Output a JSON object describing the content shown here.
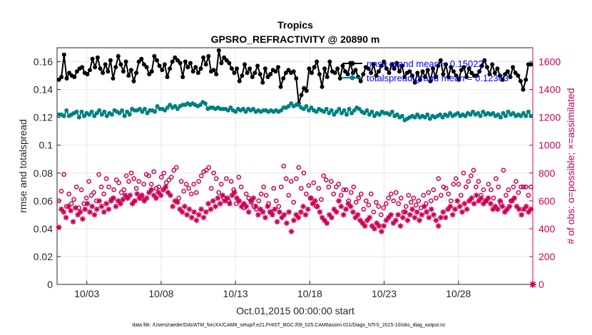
{
  "chart_data": {
    "type": "line",
    "title": "Tropics",
    "subtitle": "GPSRO_REFRACTIVITY @ 20890 m",
    "xlabel": "Oct.01,2015 00:00:00 start",
    "ylabel_left": "rmse and totalspread",
    "ylabel_right": "# of obs: o=possible; ×=assimilated",
    "footer": "data file: /Users/raeder/DAI/ATM_forcXX/CAM6_setup/f.e21.FHIST_BGC.f09_025.CAM6assim.011/Diags_NTrS_2015-10/obs_diag_output.nc",
    "x_ticks": [
      "10/03",
      "10/08",
      "10/13",
      "10/18",
      "10/23",
      "10/28"
    ],
    "x_tick_days": [
      3,
      8,
      13,
      18,
      23,
      28
    ],
    "xlim": [
      1,
      33
    ],
    "ylim_left": [
      0,
      0.17
    ],
    "y_ticks_left": [
      "0",
      "0.02",
      "0.04",
      "0.06",
      "0.08",
      "0.1",
      "0.12",
      "0.14",
      "0.16"
    ],
    "ylim_right": [
      0,
      1700
    ],
    "y_ticks_right": [
      "0",
      "200",
      "400",
      "600",
      "800",
      "1000",
      "1200",
      "1400",
      "1600"
    ],
    "grid": true,
    "legend": {
      "position": "top-right",
      "entries": [
        "rmse grand mean = 0.15022",
        "totalspread grand mean = 0.12363"
      ]
    },
    "colors": {
      "rmse": "#000000",
      "spread": "#008080",
      "obs": "#cc0055",
      "right_axis": "#cc0055",
      "legend_text": "#0000ff",
      "grid": "#e6e6e6"
    },
    "series": [
      {
        "name": "rmse",
        "axis": "left",
        "values": [
          0.147,
          0.149,
          0.165,
          0.148,
          0.152,
          0.15,
          0.149,
          0.153,
          0.155,
          0.156,
          0.152,
          0.151,
          0.154,
          0.162,
          0.156,
          0.163,
          0.155,
          0.152,
          0.158,
          0.153,
          0.161,
          0.148,
          0.156,
          0.164,
          0.158,
          0.153,
          0.16,
          0.15,
          0.154,
          0.146,
          0.152,
          0.16,
          0.162,
          0.158,
          0.156,
          0.151,
          0.153,
          0.164,
          0.161,
          0.157,
          0.154,
          0.158,
          0.149,
          0.155,
          0.16,
          0.163,
          0.161,
          0.159,
          0.149,
          0.16,
          0.156,
          0.159,
          0.153,
          0.156,
          0.152,
          0.155,
          0.163,
          0.158,
          0.164,
          0.153,
          0.154,
          0.151,
          0.168,
          0.159,
          0.163,
          0.161,
          0.159,
          0.155,
          0.152,
          0.155,
          0.146,
          0.15,
          0.158,
          0.152,
          0.155,
          0.149,
          0.152,
          0.157,
          0.151,
          0.145,
          0.155,
          0.149,
          0.151,
          0.154,
          0.153,
          0.156,
          0.142,
          0.148,
          0.152,
          0.154,
          0.152,
          0.153,
          0.148,
          0.13,
          0.136,
          0.141,
          0.139,
          0.155,
          0.152,
          0.156,
          0.16,
          0.151,
          0.142,
          0.155,
          0.149,
          0.16,
          0.153,
          0.152,
          0.155,
          0.148,
          0.157,
          0.153,
          0.151,
          0.159,
          0.152,
          0.154,
          0.149,
          0.146,
          0.151,
          0.156,
          0.155,
          0.152,
          0.158,
          0.15,
          0.153,
          0.157,
          0.16,
          0.155,
          0.152,
          0.158,
          0.155,
          0.159,
          0.153,
          0.157,
          0.149,
          0.152,
          0.153,
          0.15,
          0.145,
          0.152,
          0.147,
          0.153,
          0.149,
          0.154,
          0.146,
          0.155,
          0.149,
          0.157,
          0.161,
          0.151,
          0.158,
          0.149,
          0.156,
          0.153,
          0.15,
          0.147,
          0.154,
          0.156,
          0.149,
          0.155,
          0.152,
          0.15,
          0.15,
          0.153,
          0.157,
          0.161,
          0.156,
          0.151,
          0.158,
          0.152,
          0.155,
          0.15,
          0.147,
          0.151,
          0.153,
          0.149,
          0.156,
          0.152,
          0.15,
          0.146,
          0.14,
          0.147,
          0.158,
          0.158
        ]
      },
      {
        "name": "totalspread",
        "axis": "left",
        "values": [
          0.122,
          0.122,
          0.121,
          0.125,
          0.121,
          0.122,
          0.123,
          0.124,
          0.12,
          0.124,
          0.121,
          0.123,
          0.122,
          0.124,
          0.121,
          0.123,
          0.125,
          0.122,
          0.124,
          0.121,
          0.123,
          0.122,
          0.125,
          0.124,
          0.123,
          0.125,
          0.121,
          0.124,
          0.122,
          0.126,
          0.125,
          0.125,
          0.126,
          0.124,
          0.126,
          0.123,
          0.125,
          0.125,
          0.124,
          0.128,
          0.126,
          0.126,
          0.125,
          0.127,
          0.129,
          0.127,
          0.128,
          0.126,
          0.128,
          0.129,
          0.129,
          0.13,
          0.129,
          0.13,
          0.129,
          0.128,
          0.129,
          0.131,
          0.13,
          0.126,
          0.127,
          0.127,
          0.126,
          0.127,
          0.126,
          0.126,
          0.126,
          0.125,
          0.127,
          0.125,
          0.124,
          0.126,
          0.125,
          0.126,
          0.124,
          0.126,
          0.125,
          0.126,
          0.124,
          0.125,
          0.124,
          0.125,
          0.125,
          0.124,
          0.125,
          0.124,
          0.125,
          0.124,
          0.125,
          0.127,
          0.127,
          0.128,
          0.13,
          0.128,
          0.129,
          0.129,
          0.127,
          0.126,
          0.128,
          0.125,
          0.127,
          0.125,
          0.124,
          0.126,
          0.125,
          0.124,
          0.126,
          0.123,
          0.125,
          0.122,
          0.124,
          0.126,
          0.123,
          0.125,
          0.122,
          0.126,
          0.123,
          0.125,
          0.127,
          0.126,
          0.124,
          0.123,
          0.125,
          0.122,
          0.124,
          0.121,
          0.123,
          0.122,
          0.124,
          0.123,
          0.123,
          0.122,
          0.124,
          0.121,
          0.122,
          0.12,
          0.121,
          0.118,
          0.119,
          0.12,
          0.121,
          0.12,
          0.122,
          0.12,
          0.121,
          0.12,
          0.122,
          0.119,
          0.121,
          0.12,
          0.121,
          0.122,
          0.12,
          0.122,
          0.121,
          0.123,
          0.121,
          0.122,
          0.123,
          0.121,
          0.122,
          0.121,
          0.123,
          0.122,
          0.124,
          0.122,
          0.123,
          0.121,
          0.124,
          0.122,
          0.123,
          0.122,
          0.123,
          0.121,
          0.122,
          0.12,
          0.123,
          0.121,
          0.124,
          0.122,
          0.123,
          0.121,
          0.122,
          0.121,
          0.123,
          0.121,
          0.124,
          0.121
        ]
      },
      {
        "name": "possible",
        "axis": "right",
        "marker": "circle",
        "values": [
          600,
          670,
          790,
          560,
          650,
          580,
          610,
          700,
          550,
          680,
          580,
          620,
          740,
          640,
          660,
          600,
          790,
          700,
          650,
          760,
          700,
          610,
          680,
          750,
          730,
          660,
          680,
          780,
          740,
          800,
          760,
          690,
          740,
          620,
          720,
          790,
          780,
          720,
          810,
          690,
          700,
          770,
          800,
          730,
          750,
          770,
          820,
          840,
          620,
          740,
          670,
          720,
          690,
          650,
          720,
          660,
          740,
          780,
          810,
          820,
          840,
          690,
          800,
          760,
          660,
          720,
          620,
          760,
          600,
          740,
          680,
          580,
          770,
          700,
          550,
          650,
          620,
          590,
          560,
          540,
          600,
          650,
          700,
          640,
          580,
          520,
          690,
          600,
          560,
          700,
          850,
          760,
          640,
          740,
          590,
          760,
          840,
          690,
          800,
          650,
          710,
          620,
          730,
          560,
          690,
          610,
          780,
          750,
          700,
          740,
          650,
          700,
          720,
          640,
          680,
          680,
          600,
          660,
          700,
          590,
          620,
          650,
          540,
          600,
          570,
          650,
          520,
          590,
          560,
          500,
          550,
          580,
          620,
          650,
          600,
          660,
          580,
          620,
          520,
          560,
          640,
          590,
          620,
          570,
          600,
          550,
          640,
          580,
          660,
          600,
          680,
          620,
          760,
          640,
          700,
          690,
          650,
          600,
          720,
          760,
          720,
          640,
          800,
          700,
          740,
          780,
          820,
          700,
          740,
          640,
          680,
          600,
          720,
          680,
          620,
          760,
          700,
          580,
          820,
          640,
          680,
          600,
          700,
          740,
          660,
          700,
          700,
          700,
          640,
          700
        ]
      },
      {
        "name": "assimilated",
        "axis": "right",
        "marker": "asterisk",
        "values": [
          410,
          540,
          520,
          480,
          560,
          530,
          450,
          550,
          500,
          520,
          470,
          540,
          580,
          520,
          560,
          500,
          540,
          600,
          560,
          520,
          580,
          540,
          600,
          620,
          560,
          600,
          580,
          610,
          640,
          620,
          640,
          580,
          600,
          650,
          620,
          640,
          600,
          620,
          660,
          680,
          640,
          620,
          660,
          640,
          680,
          700,
          660,
          640,
          560,
          600,
          590,
          540,
          520,
          560,
          500,
          540,
          480,
          520,
          460,
          500,
          540,
          480,
          520,
          580,
          540,
          600,
          560,
          620,
          580,
          640,
          600,
          620,
          580,
          640,
          660,
          620,
          600,
          560,
          580,
          560,
          520,
          600,
          620,
          560,
          500,
          540,
          520,
          480,
          560,
          520,
          500,
          540,
          450,
          520,
          480,
          500,
          440,
          520,
          380,
          460,
          500,
          480,
          520,
          560,
          500,
          540,
          620,
          580,
          600,
          560,
          520,
          480,
          460,
          440,
          500,
          480,
          540,
          520,
          600,
          560,
          500,
          540,
          580,
          560,
          520,
          480,
          500,
          460,
          440,
          420,
          460,
          480,
          420,
          400,
          440,
          420,
          380,
          420,
          460,
          480,
          500,
          440,
          460,
          500,
          420,
          480,
          520,
          460,
          500,
          540,
          480,
          520,
          460,
          500,
          560,
          520,
          480,
          540,
          500,
          460,
          420,
          480,
          520,
          480,
          540,
          560,
          500,
          540,
          600,
          560,
          520,
          580,
          540,
          600,
          620,
          580,
          640,
          600,
          620,
          580,
          600,
          620,
          580,
          540,
          560,
          540,
          600,
          560,
          520,
          540,
          560,
          600,
          620,
          560,
          540,
          500,
          540,
          560,
          520,
          540
        ]
      }
    ]
  }
}
